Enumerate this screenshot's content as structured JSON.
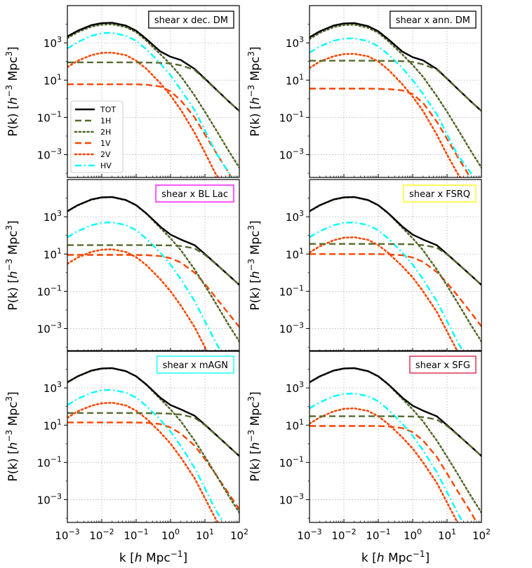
{
  "chart_data": {
    "type": "line",
    "figure_layout": "3 rows x 2 columns, shared axes",
    "xscale": "log",
    "yscale": "log",
    "xlim": [
      0.001,
      100
    ],
    "ylim": [
      6e-05,
      100000
    ],
    "x_ticks": [
      {
        "value": 0.001,
        "base": "10",
        "exp": "−3"
      },
      {
        "value": 0.01,
        "base": "10",
        "exp": "−2"
      },
      {
        "value": 0.1,
        "base": "10",
        "exp": "−1"
      },
      {
        "value": 1,
        "base": "10",
        "exp": "0"
      },
      {
        "value": 10,
        "base": "10",
        "exp": "1"
      },
      {
        "value": 100,
        "base": "10",
        "exp": "2"
      }
    ],
    "y_ticks": [
      {
        "value": 0.001,
        "base": "10",
        "exp": "−3"
      },
      {
        "value": 0.1,
        "base": "10",
        "exp": "−1"
      },
      {
        "value": 10,
        "base": "10",
        "exp": "1"
      },
      {
        "value": 1000,
        "base": "10",
        "exp": "3"
      }
    ],
    "xlabel": {
      "pre": "k [",
      "italic": "h",
      "post": " Mpc",
      "sup": "−1",
      "end": "]"
    },
    "ylabel": {
      "pre": "P(k) [",
      "italic": "h",
      "sup1": "−3",
      "mid": " Mpc",
      "sup2": "3",
      "end": "]"
    },
    "grid": true,
    "legend": {
      "placement": "left, top panel",
      "entries": [
        {
          "key": "TOT",
          "label": "TOT"
        },
        {
          "key": "1H",
          "label": "1H"
        },
        {
          "key": "2H",
          "label": "2H"
        },
        {
          "key": "1V",
          "label": "1V"
        },
        {
          "key": "2V",
          "label": "2V"
        },
        {
          "key": "HV",
          "label": "HV"
        }
      ]
    },
    "series_styles": {
      "TOT": {
        "color": "#000000",
        "dash": "solid",
        "width": 2.4
      },
      "1H": {
        "color": "#556b2f",
        "dash": "dashed",
        "width": 2.4
      },
      "2H": {
        "color": "#556b2f",
        "dash": "dotted",
        "width": 2.6
      },
      "1V": {
        "color": "#ff4500",
        "dash": "dashed",
        "width": 2.4
      },
      "2V": {
        "color": "#ff4500",
        "dash": "dotted",
        "width": 2.6
      },
      "HV": {
        "color": "#00ffff",
        "dash": "dashdot",
        "width": 2.4
      }
    },
    "x_samples": [
      0.001,
      0.002,
      0.005,
      0.01,
      0.02,
      0.05,
      0.1,
      0.2,
      0.5,
      1,
      2,
      5,
      10,
      20,
      50,
      100
    ],
    "panels": [
      {
        "title": "shear x dec. DM",
        "box_color": "#000000",
        "series": {
          "TOT": [
            2200,
            4500,
            9000,
            11500,
            12000,
            8500,
            4500,
            1600,
            350,
            180,
            120,
            40,
            12,
            3.5,
            0.7,
            0.22
          ],
          "1H": [
            90,
            90,
            90,
            90,
            90,
            90,
            89,
            88,
            85,
            78,
            62,
            35,
            11,
            3.4,
            0.7,
            0.22
          ],
          "2H": [
            1800,
            3800,
            7500,
            9500,
            10000,
            7000,
            3800,
            1300,
            250,
            70,
            16,
            1.5,
            0.2,
            0.025,
            0.0015,
            0.0002
          ],
          "1V": [
            6,
            6,
            6,
            6,
            6,
            6,
            5.9,
            5.7,
            4.5,
            2.5,
            0.8,
            0.1,
            0.012,
            0.0015,
            0.0001,
            1e-05
          ],
          "2V": [
            50,
            110,
            220,
            290,
            300,
            220,
            110,
            40,
            7,
            1.5,
            0.25,
            0.015,
            0.0013,
            0.0001,
            1e-05,
            1e-06
          ],
          "HV": [
            500,
            1100,
            2400,
            3300,
            3500,
            2400,
            1300,
            450,
            80,
            18,
            3,
            0.25,
            0.02,
            0.0015,
            0.0001,
            1e-05
          ]
        }
      },
      {
        "title": "shear x ann. DM",
        "box_color": "#000000",
        "series": {
          "TOT": [
            2000,
            4200,
            8500,
            11000,
            11500,
            8000,
            4200,
            1500,
            340,
            170,
            115,
            40,
            12,
            3.5,
            0.7,
            0.22
          ],
          "1H": [
            110,
            110,
            110,
            110,
            110,
            110,
            109,
            108,
            104,
            95,
            70,
            37,
            11.5,
            3.4,
            0.7,
            0.22
          ],
          "2H": [
            1600,
            3500,
            7000,
            9000,
            9500,
            6500,
            3500,
            1200,
            240,
            65,
            15,
            1.4,
            0.2,
            0.025,
            0.0015,
            0.0002
          ],
          "1V": [
            3.5,
            3.5,
            3.5,
            3.5,
            3.5,
            3.5,
            3.4,
            3.3,
            2.8,
            1.8,
            0.6,
            0.06,
            0.007,
            0.0008,
            5e-05,
            5e-06
          ],
          "2V": [
            45,
            100,
            190,
            250,
            260,
            190,
            100,
            35,
            6,
            1.3,
            0.22,
            0.012,
            0.001,
            0.0001,
            1e-05,
            1e-06
          ],
          "HV": [
            300,
            650,
            1300,
            1700,
            1750,
            1250,
            650,
            230,
            45,
            10,
            1.8,
            0.15,
            0.012,
            0.001,
            0.0001,
            1e-05
          ]
        }
      },
      {
        "title": "shear x BL Lac",
        "box_color": "#ff00ff",
        "series": {
          "TOT": [
            2000,
            4200,
            8500,
            11000,
            11500,
            8000,
            4200,
            1500,
            300,
            110,
            60,
            30,
            10,
            3.2,
            0.7,
            0.22
          ],
          "1H": [
            30,
            30,
            30,
            30,
            30,
            30,
            30,
            30,
            29.5,
            29,
            27,
            20,
            9,
            3.1,
            0.7,
            0.22
          ],
          "2H": [
            1950,
            4100,
            8300,
            10800,
            11300,
            7800,
            4100,
            1450,
            260,
            70,
            16,
            1.5,
            0.2,
            0.025,
            0.0015,
            0.0002
          ],
          "1V": [
            9,
            9,
            9,
            9,
            9,
            9,
            8.9,
            8.7,
            7.8,
            6,
            3.5,
            1,
            0.25,
            0.05,
            0.006,
            0.0012
          ],
          "2V": [
            3,
            6.5,
            13,
            17,
            18,
            13,
            6.8,
            2.5,
            0.45,
            0.1,
            0.017,
            0.0012,
            0.0001,
            1e-05,
            1e-06,
            1e-07
          ],
          "HV": [
            80,
            170,
            350,
            480,
            500,
            360,
            190,
            65,
            12,
            2.7,
            0.45,
            0.03,
            0.0025,
            0.0002,
            1e-05,
            1e-06
          ]
        }
      },
      {
        "title": "shear x FSRQ",
        "box_color": "#ffff00",
        "series": {
          "TOT": [
            2000,
            4200,
            8500,
            11000,
            11500,
            8000,
            4200,
            1500,
            300,
            110,
            60,
            30,
            10,
            3.2,
            0.7,
            0.22
          ],
          "1H": [
            35,
            35,
            35,
            35,
            35,
            35,
            35,
            34.5,
            34,
            33,
            30,
            22,
            9.5,
            3.1,
            0.7,
            0.22
          ],
          "2H": [
            1950,
            4100,
            8300,
            10800,
            11300,
            7800,
            4100,
            1450,
            260,
            70,
            16,
            1.5,
            0.2,
            0.025,
            0.0015,
            0.0002
          ],
          "1V": [
            10,
            10,
            10,
            10,
            10,
            10,
            9.9,
            9.6,
            8.6,
            6.5,
            3.8,
            1.1,
            0.28,
            0.06,
            0.007,
            0.0013
          ],
          "2V": [
            12,
            26,
            55,
            75,
            80,
            58,
            30,
            11,
            2.2,
            0.55,
            0.1,
            0.008,
            0.0007,
            6e-05,
            4e-06,
            3e-07
          ],
          "HV": [
            80,
            170,
            350,
            480,
            500,
            360,
            190,
            65,
            12,
            2.7,
            0.45,
            0.03,
            0.0025,
            0.0002,
            1e-05,
            1e-06
          ]
        }
      },
      {
        "title": "shear x mAGN",
        "box_color": "#00ffff",
        "series": {
          "TOT": [
            2000,
            4200,
            8500,
            11000,
            11500,
            8000,
            4200,
            1500,
            300,
            120,
            70,
            32,
            10.5,
            3.3,
            0.7,
            0.22
          ],
          "1H": [
            45,
            45,
            45,
            45,
            45,
            45,
            44.5,
            44,
            43,
            41,
            37,
            25,
            10,
            3.2,
            0.7,
            0.22
          ],
          "2H": [
            1950,
            4100,
            8300,
            10800,
            11300,
            7800,
            4100,
            1450,
            260,
            70,
            16,
            1.5,
            0.2,
            0.025,
            0.0015,
            0.0002
          ],
          "1V": [
            14,
            14,
            14,
            14,
            14,
            14,
            13.8,
            13.4,
            11.5,
            7.5,
            3.5,
            0.8,
            0.15,
            0.025,
            0.002,
            0.0003
          ],
          "2V": [
            25,
            55,
            110,
            150,
            160,
            115,
            60,
            22,
            4.2,
            1,
            0.18,
            0.014,
            0.0012,
            0.0001,
            7e-06,
            5e-07
          ],
          "HV": [
            120,
            260,
            540,
            740,
            780,
            560,
            300,
            105,
            20,
            4.5,
            0.75,
            0.05,
            0.004,
            0.0003,
            2e-05,
            1e-06
          ]
        }
      },
      {
        "title": "shear x SFG",
        "box_color": "#dc143c",
        "series": {
          "TOT": [
            2000,
            4200,
            8500,
            11000,
            11500,
            8000,
            4200,
            1500,
            300,
            110,
            60,
            30,
            10,
            3.2,
            0.7,
            0.22
          ],
          "1H": [
            30,
            30,
            30,
            30,
            30,
            30,
            30,
            30,
            29.5,
            29,
            27,
            20,
            9,
            3.1,
            0.7,
            0.22
          ],
          "2H": [
            1950,
            4100,
            8300,
            10800,
            11300,
            7800,
            4100,
            1450,
            260,
            70,
            16,
            1.5,
            0.2,
            0.025,
            0.0015,
            0.0002
          ],
          "1V": [
            9,
            9,
            9,
            9,
            9,
            9,
            8.9,
            8.5,
            7,
            4.2,
            1.5,
            0.2,
            0.025,
            0.003,
            0.0002,
            2e-05
          ],
          "2V": [
            12,
            26,
            55,
            75,
            80,
            58,
            30,
            11,
            2.2,
            0.55,
            0.1,
            0.008,
            0.0007,
            6e-05,
            4e-06,
            3e-07
          ],
          "HV": [
            80,
            170,
            350,
            480,
            500,
            360,
            190,
            65,
            12,
            2.7,
            0.45,
            0.03,
            0.0025,
            0.0002,
            1e-05,
            1e-06
          ]
        }
      }
    ]
  }
}
